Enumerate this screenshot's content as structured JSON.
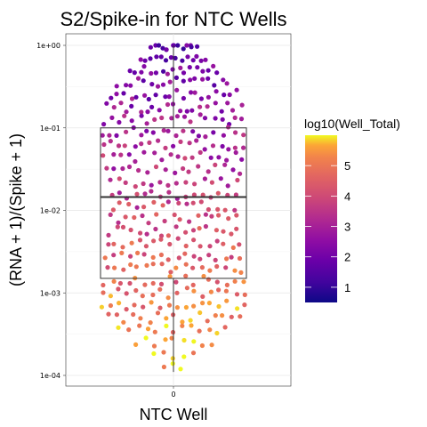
{
  "chart_data": {
    "type": "beeswarm_boxplot",
    "title": "S2/Spike-in for NTC Wells",
    "xlabel": "NTC Well",
    "ylabel": "(RNA + 1)/(Spike + 1)",
    "y_scale": "log10",
    "ylim": [
      0.0001,
      1
    ],
    "y_ticks": [
      1,
      0.1,
      0.01,
      0.001,
      0.0001
    ],
    "y_tick_labels": [
      "1e+00",
      "1e-01",
      "1e-02",
      "1e-03",
      "1e-04"
    ],
    "x_tick_labels": [
      "0"
    ],
    "grid": true,
    "legend_position": "right",
    "box": {
      "category": "0",
      "q1": 0.0015,
      "median": 0.0145,
      "q3": 0.1,
      "whisker_low": 0.00011,
      "whisker_high": 1.0
    },
    "color_scale": {
      "name": "plasma",
      "title": "log10(Well_Total)",
      "min": 0.5,
      "max": 6.0,
      "ticks": [
        1,
        2,
        3,
        4,
        5
      ],
      "tick_labels": [
        "1",
        "2",
        "3",
        "4",
        "5"
      ]
    },
    "points_summary": "approx. 400 wells; points near 1e+00 have log10(Well_Total) about 1-2, points near 1e-03 and below have about 5-6"
  }
}
